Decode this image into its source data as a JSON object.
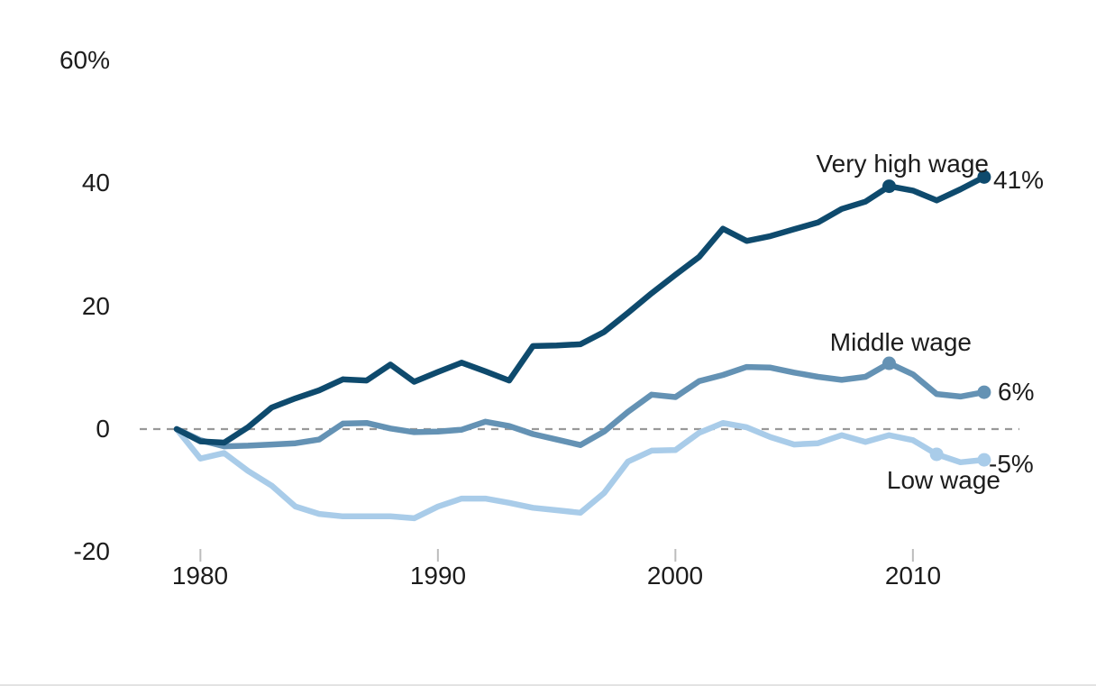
{
  "chart_data": {
    "type": "line",
    "title": "",
    "xlabel": "",
    "ylabel": "",
    "x_years": [
      1979,
      1980,
      1981,
      1982,
      1983,
      1984,
      1985,
      1986,
      1987,
      1988,
      1989,
      1990,
      1991,
      1992,
      1993,
      1994,
      1995,
      1996,
      1997,
      1998,
      1999,
      2000,
      2001,
      2002,
      2003,
      2004,
      2005,
      2006,
      2007,
      2008,
      2009,
      2010,
      2011,
      2012,
      2013
    ],
    "series": [
      {
        "name": "Very high wage",
        "color": "#0e4a6d",
        "end_label": "41%",
        "marker_years": [
          2009,
          2013
        ],
        "values": [
          0,
          -2,
          -2.2,
          0.3,
          3.5,
          5,
          6.3,
          8.1,
          7.9,
          10.5,
          7.7,
          9.3,
          10.8,
          9.4,
          7.9,
          13.5,
          13.6,
          13.8,
          15.8,
          18.9,
          22.1,
          25.1,
          28,
          32.6,
          30.6,
          31.4,
          32.5,
          33.6,
          35.8,
          37,
          39.5,
          38.8,
          37.2,
          39,
          41
        ]
      },
      {
        "name": "Middle wage",
        "color": "#6492b4",
        "end_label": "6%",
        "marker_years": [
          2009,
          2013
        ],
        "values": [
          0,
          -1.8,
          -2.8,
          -2.7,
          -2.5,
          -2.3,
          -1.7,
          0.9,
          1,
          0.1,
          -0.5,
          -0.4,
          -0.1,
          1.2,
          0.5,
          -0.8,
          -1.7,
          -2.6,
          -0.4,
          2.8,
          5.6,
          5.2,
          7.8,
          8.8,
          10.1,
          10,
          9.2,
          8.5,
          8,
          8.5,
          10.7,
          8.9,
          5.7,
          5.3,
          6
        ]
      },
      {
        "name": "Low wage",
        "color": "#a9cce9",
        "end_label": "-5%",
        "marker_years": [
          2011,
          2013
        ],
        "values": [
          0,
          -4.8,
          -3.9,
          -6.8,
          -9.2,
          -12.6,
          -13.8,
          -14.2,
          -14.2,
          -14.2,
          -14.5,
          -12.6,
          -11.3,
          -11.3,
          -12,
          -12.8,
          -13.2,
          -13.6,
          -10.4,
          -5.3,
          -3.5,
          -3.4,
          -0.6,
          1,
          0.3,
          -1.3,
          -2.5,
          -2.3,
          -1,
          -2.1,
          -1,
          -1.8,
          -4.1,
          -5.4,
          -5
        ]
      }
    ],
    "yticks": [
      {
        "value": 60,
        "label": "60%"
      },
      {
        "value": 40,
        "label": "40"
      },
      {
        "value": 20,
        "label": "20"
      },
      {
        "value": 0,
        "label": "0"
      },
      {
        "value": -20,
        "label": "-20"
      }
    ],
    "xticks": [
      {
        "value": 1980,
        "label": "1980"
      },
      {
        "value": 1990,
        "label": "1990"
      },
      {
        "value": 2000,
        "label": "2000"
      },
      {
        "value": 2010,
        "label": "2010"
      }
    ],
    "xlim": [
      1979,
      2013
    ],
    "ylim": [
      -20,
      60
    ],
    "grid": false,
    "legend": "direct-labels",
    "zero_line": {
      "style": "dashed",
      "color": "#999999"
    },
    "tick_mark_color": "#bcbcbc"
  }
}
